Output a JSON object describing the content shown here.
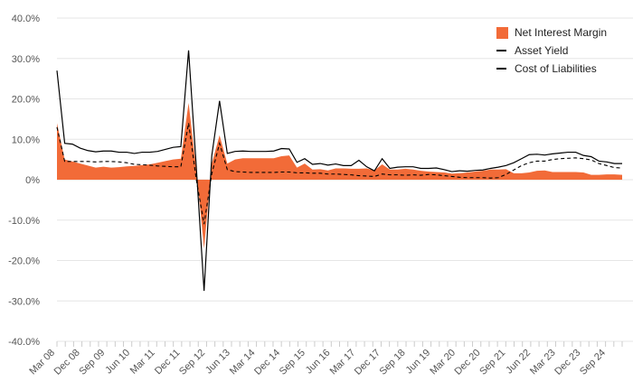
{
  "chart_data": {
    "type": "area",
    "title": "",
    "xlabel": "",
    "ylabel": "",
    "ylim": [
      -40,
      40
    ],
    "y_ticks": [
      "40.0%",
      "30.0%",
      "20.0%",
      "10.0%",
      "0%",
      "-10.0%",
      "-20.0%",
      "-30.0%",
      "-40.0%"
    ],
    "y_tick_values": [
      40,
      30,
      20,
      10,
      0,
      -10,
      -20,
      -30,
      -40
    ],
    "x_tick_labels": [
      "Mar 08",
      "Dec 08",
      "Sep 09",
      "Jun 10",
      "Mar 11",
      "Dec 11",
      "Sep 12",
      "Jun 13",
      "Mar 14",
      "Dec 14",
      "Sep 15",
      "Jun 16",
      "Mar 17",
      "Dec 17",
      "Sep 18",
      "Jun 19",
      "Mar 20",
      "Dec 20",
      "Sep 21",
      "Jun 22",
      "Mar 23",
      "Dec 23",
      "Sep 24"
    ],
    "colors": {
      "nim": "#F26B38",
      "asset": "#000000",
      "cost": "#000000",
      "grid": "#e6e6e6"
    },
    "series": [
      {
        "name": "Net Interest Margin",
        "style": "area",
        "values": [
          14,
          5,
          4.5,
          4,
          3.5,
          3,
          3.2,
          3,
          3.1,
          3.3,
          3.4,
          3.6,
          3.8,
          4.2,
          4.6,
          5,
          5.2,
          19,
          2.5,
          -17,
          4,
          11,
          4,
          5,
          5.3,
          5.3,
          5.3,
          5.3,
          5.3,
          5.8,
          6,
          3,
          4,
          2.5,
          2.6,
          2.3,
          2.8,
          2.8,
          2.7,
          2.7,
          2.8,
          2.3,
          3.8,
          2.5,
          2.5,
          2.7,
          2.5,
          2.2,
          2.0,
          1.9,
          1.8,
          1.5,
          1.6,
          1.8,
          2,
          2.2,
          2.5,
          2.5,
          2.6,
          1.6,
          1.6,
          1.8,
          2.2,
          2.3,
          1.9,
          1.9,
          1.9,
          1.9,
          1.8,
          1.2,
          1.2,
          1.3,
          1.3,
          1.2
        ]
      },
      {
        "name": "Asset Yield",
        "style": "solid",
        "values": [
          27,
          9,
          8.8,
          7.8,
          7.2,
          6.9,
          7.1,
          7.1,
          6.8,
          6.8,
          6.5,
          6.8,
          6.8,
          7,
          7.5,
          8,
          8.2,
          32,
          3,
          -27.5,
          6,
          19.5,
          6.5,
          7,
          7.1,
          7,
          7,
          7,
          7.1,
          7.7,
          7.6,
          4.3,
          5.2,
          3.8,
          4,
          3.6,
          3.9,
          3.5,
          3.5,
          4.8,
          3.2,
          2.2,
          5.2,
          2.8,
          3.1,
          3.2,
          3.2,
          2.8,
          2.8,
          2.9,
          2.5,
          2,
          2.2,
          2.1,
          2.3,
          2.4,
          2.8,
          3.1,
          3.5,
          4.2,
          5.2,
          6.2,
          6.3,
          6.1,
          6.4,
          6.6,
          6.8,
          6.8,
          6.0,
          5.7,
          4.6,
          4.4,
          4.0,
          4.0
        ]
      },
      {
        "name": "Cost of Liabilities",
        "style": "dashed",
        "values": [
          13,
          4.5,
          4.5,
          4.5,
          4.5,
          4.4,
          4.5,
          4.5,
          4.4,
          4.2,
          3.8,
          3.7,
          3.6,
          3.4,
          3.3,
          3.2,
          3.2,
          14,
          0,
          -11,
          1.5,
          9,
          2.5,
          2,
          1.9,
          1.8,
          1.8,
          1.8,
          1.8,
          1.9,
          1.9,
          1.7,
          1.7,
          1.6,
          1.6,
          1.4,
          1.4,
          1.3,
          1.2,
          1.0,
          0.9,
          0.8,
          1.4,
          1.2,
          1.2,
          1.1,
          1.2,
          1.1,
          1.3,
          1.2,
          1.0,
          0.8,
          0.6,
          0.5,
          0.5,
          0.5,
          0.4,
          0.5,
          1.3,
          2.4,
          3.5,
          4.2,
          4.6,
          4.6,
          5.0,
          5.2,
          5.3,
          5.4,
          5.2,
          4.9,
          4.0,
          3.5,
          3.0,
          2.9
        ]
      }
    ],
    "legend_position": "top-right"
  }
}
